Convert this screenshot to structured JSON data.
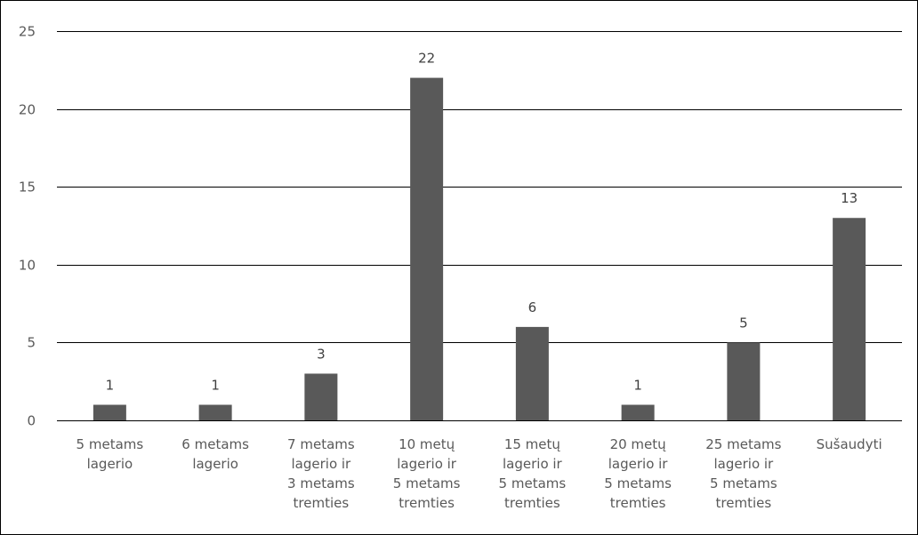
{
  "chart_data": {
    "type": "bar",
    "categories": [
      [
        "5 metams",
        "lagerio"
      ],
      [
        "6 metams",
        "lagerio"
      ],
      [
        "7 metams",
        "lagerio ir",
        "3 metams",
        "tremties"
      ],
      [
        "10 metų",
        "lagerio ir",
        "5 metams",
        "tremties"
      ],
      [
        "15 metų",
        "lagerio ir",
        "5 metams",
        "tremties"
      ],
      [
        "20 metų",
        "lagerio ir",
        "5 metams",
        "tremties"
      ],
      [
        "25 metams",
        "lagerio ir",
        "5 metams",
        "tremties"
      ],
      [
        "Sušaudyti"
      ]
    ],
    "values": [
      1,
      1,
      3,
      22,
      6,
      1,
      5,
      13
    ],
    "data_labels": [
      "1",
      "1",
      "3",
      "22",
      "6",
      "1",
      "5",
      "13"
    ],
    "ylim": [
      0,
      25
    ],
    "yticks": [
      0,
      5,
      10,
      15,
      20,
      25
    ],
    "ytick_labels": [
      "0",
      "5",
      "10",
      "15",
      "20",
      "25"
    ],
    "grid": true,
    "legend": "none",
    "bar_color": "#595959",
    "title": "",
    "xlabel": "",
    "ylabel": ""
  }
}
